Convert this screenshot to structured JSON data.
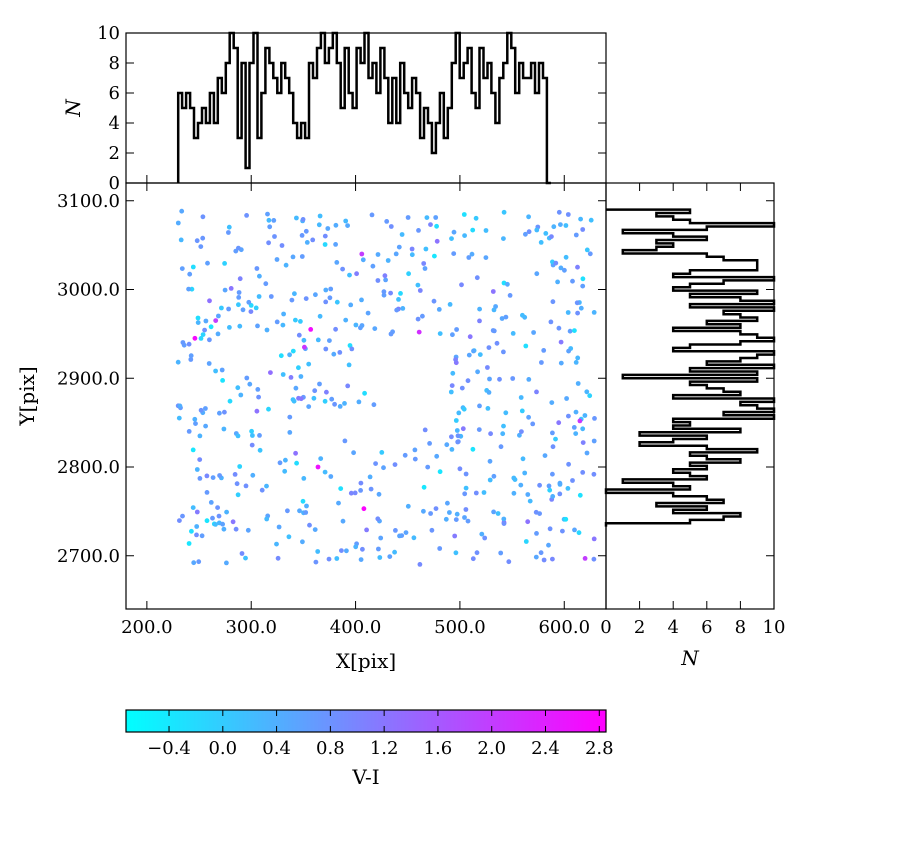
{
  "chart_data": [
    {
      "id": "scatter",
      "type": "scatter",
      "xlabel": "X[pix]",
      "ylabel": "Y[pix]",
      "xlim": [
        180,
        640
      ],
      "ylim": [
        2640,
        3120
      ],
      "xticks": [
        "200.0",
        "300.0",
        "400.0",
        "500.0",
        "600.0"
      ],
      "yticks": [
        "2700.0",
        "2800.0",
        "2900.0",
        "3000.0",
        "3100.0"
      ],
      "color_by": "V-I",
      "point_count": 600,
      "gap_region": {
        "x": [
          420,
          490
        ],
        "y": [
          2845,
          2945
        ]
      },
      "highlighted_points": [
        {
          "x": 246,
          "y": 2945,
          "c": 2.7
        },
        {
          "x": 266,
          "y": 2965,
          "c": 2.0
        },
        {
          "x": 357,
          "y": 2955,
          "c": 2.7
        },
        {
          "x": 351,
          "y": 2935,
          "c": 2.1
        },
        {
          "x": 364,
          "y": 2800,
          "c": 2.6
        },
        {
          "x": 408,
          "y": 2753,
          "c": 2.8
        },
        {
          "x": 406,
          "y": 3040,
          "c": 2.0
        },
        {
          "x": 461,
          "y": 2952,
          "c": 2.2
        },
        {
          "x": 615,
          "y": 2852,
          "c": 2.1
        },
        {
          "x": 620,
          "y": 2697,
          "c": 2.0
        }
      ]
    },
    {
      "id": "top-histogram",
      "type": "bar",
      "ylabel": "N",
      "ylim": [
        0,
        10
      ],
      "yticks": [
        "0",
        "2",
        "4",
        "6",
        "8",
        "10"
      ],
      "bin_start": 230,
      "bin_width": 3.8,
      "values": [
        6,
        5,
        6,
        5,
        3,
        4,
        5,
        4,
        6,
        4,
        7,
        6,
        8,
        10,
        9,
        3,
        8,
        1,
        8,
        10,
        3,
        6,
        9,
        8,
        7,
        6,
        8,
        7,
        6,
        4,
        3,
        4,
        3,
        8,
        7,
        9,
        10,
        8,
        9,
        10,
        8,
        5,
        9,
        6,
        5,
        9,
        8,
        10,
        7,
        8,
        6,
        9,
        7,
        4,
        7,
        4,
        8,
        6,
        5,
        7,
        6,
        3,
        5,
        4,
        2,
        4,
        6,
        3,
        5,
        8,
        10,
        7,
        8,
        9,
        6,
        5,
        9,
        7,
        8,
        6,
        4,
        7,
        8,
        10,
        9,
        6,
        8,
        7,
        7,
        8,
        6,
        8,
        7,
        0
      ]
    },
    {
      "id": "right-histogram",
      "type": "bar",
      "xlabel": "N",
      "xlim": [
        0,
        10
      ],
      "xticks": [
        "0",
        "2",
        "4",
        "6",
        "8",
        "10"
      ],
      "bin_start": 3090,
      "bin_width": 3.8,
      "values": [
        5,
        3,
        4,
        5,
        10,
        6,
        1,
        4,
        6,
        3,
        4,
        3,
        1,
        6,
        7,
        9,
        9,
        9,
        5,
        4,
        10,
        7,
        5,
        4,
        9,
        5,
        8,
        10,
        5,
        10,
        7,
        8,
        9,
        6,
        8,
        4,
        8,
        9,
        10,
        8,
        5,
        4,
        10,
        9,
        8,
        6,
        10,
        5,
        9,
        1,
        9,
        5,
        6,
        7,
        8,
        4,
        10,
        8,
        9,
        10,
        7,
        10,
        4,
        5,
        4,
        8,
        2,
        6,
        4,
        2,
        6,
        9,
        5,
        6,
        8,
        5,
        6,
        4,
        5,
        6,
        1,
        4,
        5,
        0,
        4,
        6,
        7,
        3,
        6,
        4,
        8,
        7,
        5,
        0
      ]
    }
  ],
  "colorbar": {
    "label": "V-I",
    "ticks": [
      "−0.4",
      "0.0",
      "0.4",
      "0.8",
      "1.2",
      "1.6",
      "2.0",
      "2.4",
      "2.8"
    ],
    "tick_values": [
      -0.4,
      0.0,
      0.4,
      0.8,
      1.2,
      1.6,
      2.0,
      2.4,
      2.8
    ],
    "range": [
      -0.72,
      2.85
    ],
    "color_low": "#00ffff",
    "color_high": "#ff00ff"
  }
}
